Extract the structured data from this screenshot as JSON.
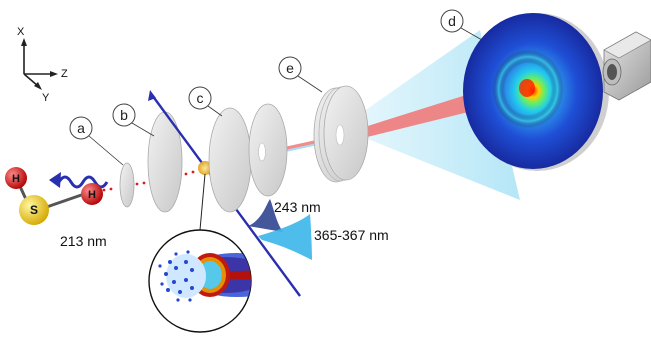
{
  "axes": {
    "x_label": "X",
    "y_label": "Y",
    "z_label": "Z"
  },
  "molecule": {
    "atom_h1": "H",
    "atom_s": "S",
    "atom_h2": "H"
  },
  "wavelengths": {
    "photolysis": "213 nm",
    "probe_1": "243 nm",
    "probe_2": "365-367 nm"
  },
  "callouts": {
    "a": "a",
    "b": "b",
    "c": "c",
    "d": "d",
    "e": "e"
  },
  "colors": {
    "photolysis_laser": "#2a2fb0",
    "probe_laser_243": "#243a8a",
    "probe_laser_365": "#39b4e8",
    "sulfur": "#f2d21b",
    "hydrogen": "#e01a1a",
    "ion_beam": "#f08080",
    "detector_bg": "#1a2a9a"
  },
  "icons": {
    "camera": "camera-icon",
    "axes": "axes-icon"
  }
}
